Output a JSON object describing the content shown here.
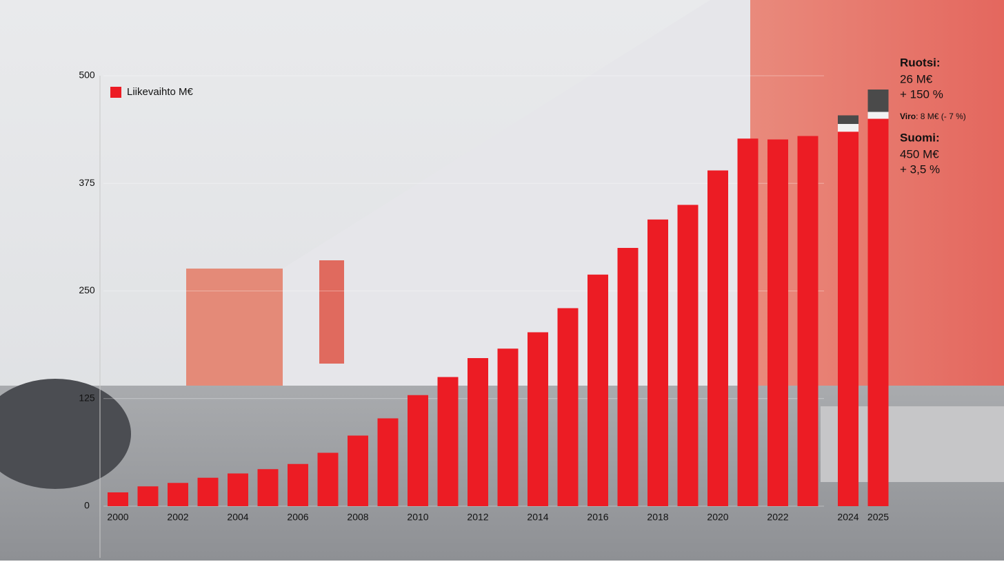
{
  "chart_data": {
    "type": "bar",
    "legend": "Liikevaihto M€",
    "categories": [
      "2000",
      null,
      "2002",
      null,
      "2004",
      null,
      "2006",
      null,
      "2008",
      null,
      "2010",
      null,
      "2012",
      null,
      "2014",
      null,
      "2016",
      null,
      "2018",
      null,
      "2020",
      null,
      "2022",
      null,
      "2024",
      "2025"
    ],
    "series": [
      {
        "color": "#ec1c24",
        "values": [
          16,
          23,
          27,
          33,
          38,
          43,
          49,
          62,
          82,
          102,
          129,
          150,
          172,
          183,
          202,
          230,
          269,
          300,
          333,
          350,
          390,
          427,
          426,
          430,
          435,
          450
        ]
      },
      {
        "color": "#f2f2f2",
        "values": [
          null,
          null,
          null,
          null,
          null,
          null,
          null,
          null,
          null,
          null,
          null,
          null,
          null,
          null,
          null,
          null,
          null,
          null,
          null,
          null,
          null,
          null,
          null,
          null,
          9,
          8
        ]
      },
      {
        "color": "#4a4a4a",
        "values": [
          null,
          null,
          null,
          null,
          null,
          null,
          null,
          null,
          null,
          null,
          null,
          null,
          null,
          null,
          null,
          null,
          null,
          null,
          null,
          null,
          null,
          null,
          null,
          null,
          10,
          26
        ]
      }
    ],
    "ylim": [
      0,
      500
    ],
    "yticks": [
      0,
      125,
      250,
      375,
      500
    ],
    "grid": true,
    "annotations": {
      "ruotsi": {
        "title": "Ruotsi:",
        "value": "26 M€",
        "change": "+ 150 %"
      },
      "viro": {
        "title": "Viro",
        "text": ": 8 M€ (- 7 %)"
      },
      "suomi": {
        "title": "Suomi:",
        "value": "450 M€",
        "change": "+ 3,5 %"
      }
    }
  }
}
